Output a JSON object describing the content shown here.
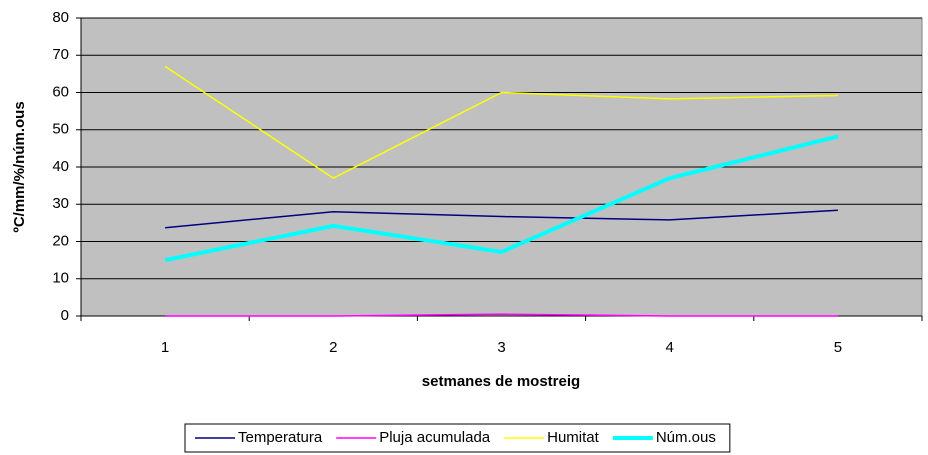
{
  "chart_data": {
    "type": "line",
    "categories": [
      "1",
      "2",
      "3",
      "4",
      "5"
    ],
    "series": [
      {
        "name": "Temperatura",
        "color": "#000080",
        "width": 1.5,
        "values": [
          23.7,
          28,
          26.7,
          25.8,
          28.4
        ]
      },
      {
        "name": "Pluja acumulada",
        "color": "#ff00ff",
        "width": 1.5,
        "values": [
          0,
          0,
          0.5,
          0,
          0
        ]
      },
      {
        "name": "Humitat",
        "color": "#ffff00",
        "width": 1.5,
        "values": [
          67,
          37,
          60,
          58.3,
          59.2
        ]
      },
      {
        "name": "Núm.ous",
        "color": "#00ffff",
        "width": 4,
        "values": [
          15,
          24.2,
          17.2,
          37,
          48.2
        ]
      }
    ],
    "ylim": [
      0,
      80
    ],
    "yticks": [
      0,
      10,
      20,
      30,
      40,
      50,
      60,
      70,
      80
    ],
    "xlabel": "setmanes de mostreig",
    "ylabel": "ºC/mm/%/núm.ous",
    "grid": true,
    "legend": "bottom"
  }
}
